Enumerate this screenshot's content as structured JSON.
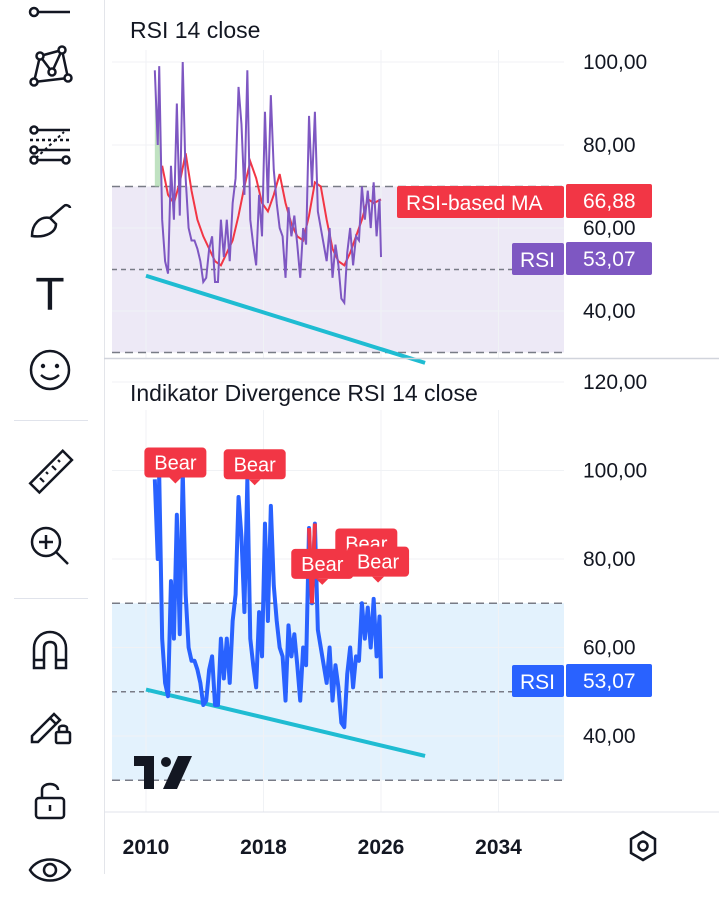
{
  "toolbar": {
    "tools": [
      {
        "name": "line-tool-icon"
      },
      {
        "name": "pattern-tool-icon"
      },
      {
        "name": "fib-tool-icon"
      },
      {
        "name": "brush-tool-icon"
      },
      {
        "name": "text-tool-icon"
      },
      {
        "name": "emoji-tool-icon"
      },
      {
        "name": "ruler-tool-icon"
      },
      {
        "name": "zoom-in-icon"
      },
      {
        "name": "magnet-icon"
      },
      {
        "name": "lock-drawing-icon"
      },
      {
        "name": "unlock-icon"
      },
      {
        "name": "eye-icon"
      }
    ],
    "text_tool_glyph": "T"
  },
  "colors": {
    "rsi_line": "#7e57c2",
    "rsi_ma": "#f23645",
    "divergence_line": "#2962ff",
    "trendline": "#1fbcd2",
    "band_top": "#ede9f6",
    "band_bottom": "#e3f2fd",
    "bear": "#f23645"
  },
  "chart_data": [
    {
      "type": "line",
      "title": "RSI 14 close",
      "ylim": [
        29,
        102
      ],
      "yticks": [
        "40,00",
        "60,00",
        "80,00",
        "100,00"
      ],
      "ytick_values": [
        40,
        60,
        80,
        100
      ],
      "levels": [
        30,
        50,
        70
      ],
      "band": [
        30,
        70
      ],
      "series": [
        {
          "name": "RSI",
          "last_value_label": "53,07",
          "x": [
            2010.6,
            2010.8,
            2010.9,
            2011.1,
            2011.3,
            2011.5,
            2011.7,
            2011.9,
            2012.1,
            2012.3,
            2012.5,
            2012.7,
            2012.9,
            2013.1,
            2013.3,
            2013.5,
            2013.7,
            2013.9,
            2014.1,
            2014.3,
            2014.5,
            2014.7,
            2014.9,
            2015.1,
            2015.3,
            2015.5,
            2015.7,
            2015.9,
            2016.1,
            2016.3,
            2016.5,
            2016.7,
            2016.9,
            2017.1,
            2017.3,
            2017.5,
            2017.7,
            2017.9,
            2018.1,
            2018.3,
            2018.5,
            2018.7,
            2018.9,
            2019.1,
            2019.3,
            2019.5,
            2019.7,
            2019.9,
            2020.1,
            2020.3,
            2020.5,
            2020.7,
            2020.9,
            2021.1,
            2021.3,
            2021.5,
            2021.7,
            2021.9,
            2022.1,
            2022.3,
            2022.5,
            2022.7,
            2022.9,
            2023.1,
            2023.3,
            2023.5,
            2023.7,
            2023.9,
            2024.1,
            2024.3,
            2024.5,
            2024.7,
            2024.9,
            2025.1,
            2025.3,
            2025.5,
            2025.7,
            2025.9,
            2026.0
          ],
          "y": [
            98,
            80,
            99,
            62,
            52,
            49,
            75,
            62,
            90,
            63,
            100,
            72,
            60,
            57,
            57,
            55,
            52,
            47,
            48,
            55,
            58,
            47,
            47,
            62,
            53,
            62,
            52,
            66,
            72,
            94,
            85,
            68,
            98,
            62,
            56,
            51,
            68,
            58,
            88,
            66,
            92,
            74,
            66,
            60,
            58,
            48,
            65,
            58,
            63,
            56,
            48,
            60,
            56,
            87,
            70,
            88,
            64,
            60,
            56,
            52,
            60,
            48,
            56,
            51,
            43,
            42,
            54,
            60,
            51,
            58,
            57,
            70,
            62,
            69,
            60,
            71,
            58,
            67,
            53
          ]
        },
        {
          "name": "RSI-based MA",
          "last_value_label": "66,88",
          "x": [
            2011.1,
            2011.5,
            2011.9,
            2012.3,
            2012.7,
            2013.1,
            2013.5,
            2013.9,
            2014.3,
            2014.7,
            2015.1,
            2015.5,
            2015.9,
            2016.3,
            2016.7,
            2017.1,
            2017.5,
            2017.9,
            2018.3,
            2018.7,
            2019.1,
            2019.5,
            2019.9,
            2020.3,
            2020.7,
            2021.1,
            2021.5,
            2021.9,
            2022.3,
            2022.7,
            2023.1,
            2023.5,
            2023.9,
            2024.3,
            2024.7,
            2025.1,
            2025.5,
            2026.0
          ],
          "y": [
            75,
            68,
            66,
            71,
            78,
            69,
            62,
            58,
            55,
            52,
            51,
            54,
            57,
            63,
            70,
            76,
            72,
            66,
            64,
            68,
            73,
            66,
            61,
            58,
            57,
            63,
            71,
            70,
            62,
            55,
            52,
            51,
            54,
            58,
            62,
            67,
            66,
            66.88
          ]
        }
      ],
      "trendline": {
        "x": [
          2010.0,
          2029.0
        ],
        "y": [
          48.5,
          27.5
        ]
      }
    },
    {
      "type": "line",
      "title": "Indikator Divergence RSI 14 close",
      "ylim": [
        28,
        122
      ],
      "yticks": [
        "40,00",
        "60,00",
        "80,00",
        "100,00",
        "120,00"
      ],
      "ytick_values": [
        40,
        60,
        80,
        100,
        120
      ],
      "levels": [
        30,
        50,
        70
      ],
      "band": [
        30,
        70
      ],
      "series": [
        {
          "name": "RSI",
          "last_value_label": "53,07",
          "x": [
            2010.6,
            2010.8,
            2010.9,
            2011.1,
            2011.3,
            2011.5,
            2011.7,
            2011.9,
            2012.1,
            2012.3,
            2012.5,
            2012.7,
            2012.9,
            2013.1,
            2013.3,
            2013.5,
            2013.7,
            2013.9,
            2014.1,
            2014.3,
            2014.5,
            2014.7,
            2014.9,
            2015.1,
            2015.3,
            2015.5,
            2015.7,
            2015.9,
            2016.1,
            2016.3,
            2016.5,
            2016.7,
            2016.9,
            2017.1,
            2017.3,
            2017.5,
            2017.7,
            2017.9,
            2018.1,
            2018.3,
            2018.5,
            2018.7,
            2018.9,
            2019.1,
            2019.3,
            2019.5,
            2019.7,
            2019.9,
            2020.1,
            2020.3,
            2020.5,
            2020.7,
            2020.9,
            2021.1,
            2021.3,
            2021.5,
            2021.7,
            2021.9,
            2022.1,
            2022.3,
            2022.5,
            2022.7,
            2022.9,
            2023.1,
            2023.3,
            2023.5,
            2023.7,
            2023.9,
            2024.1,
            2024.3,
            2024.5,
            2024.7,
            2024.9,
            2025.1,
            2025.3,
            2025.5,
            2025.7,
            2025.9,
            2026.0
          ],
          "y": [
            98,
            80,
            99,
            62,
            52,
            49,
            75,
            62,
            90,
            63,
            100,
            72,
            60,
            57,
            57,
            55,
            52,
            47,
            48,
            55,
            58,
            47,
            47,
            62,
            53,
            62,
            52,
            66,
            72,
            94,
            85,
            68,
            98,
            62,
            56,
            51,
            68,
            58,
            88,
            66,
            92,
            74,
            66,
            60,
            58,
            48,
            65,
            58,
            63,
            56,
            48,
            60,
            56,
            87,
            70,
            88,
            64,
            60,
            56,
            52,
            60,
            48,
            56,
            51,
            43,
            42,
            54,
            60,
            51,
            58,
            57,
            70,
            62,
            69,
            60,
            71,
            58,
            67,
            53
          ]
        }
      ],
      "trendline": {
        "x": [
          2010.0,
          2029.0
        ],
        "y": [
          50.5,
          35.5
        ]
      },
      "bear_markers": [
        {
          "label": "Bear",
          "x": 2012.0,
          "y": 101.8
        },
        {
          "label": "Bear",
          "x": 2017.4,
          "y": 101.4
        },
        {
          "label": "Bear",
          "x": 2022.0,
          "y": 78.9
        },
        {
          "label": "Bear",
          "x": 2025.0,
          "y": 83.5
        },
        {
          "label": "Bear",
          "x": 2025.8,
          "y": 79.4
        }
      ]
    }
  ],
  "time_axis": {
    "labels": [
      "2010",
      "2018",
      "2026",
      "2034"
    ],
    "values": [
      2010,
      2018,
      2026,
      2034
    ]
  },
  "settings_icon": "settings-hexagon-icon",
  "logo": "tradingview-logo"
}
